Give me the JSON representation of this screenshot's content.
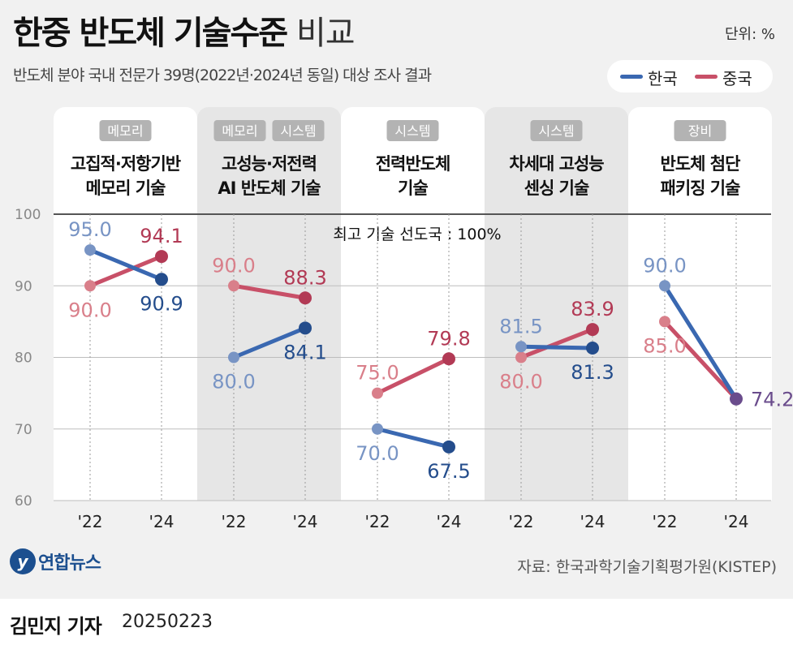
{
  "header": {
    "title_bold": "한중 반도체 기술수준",
    "title_light": "비교",
    "subtitle": "반도체 분야 국내 전문가 39명(2022년·2024년 동일) 대상 조사 결과",
    "unit": "단위: %"
  },
  "legend": [
    {
      "name": "한국",
      "color": "#3a68b1"
    },
    {
      "name": "중국",
      "color": "#c85068"
    }
  ],
  "colors": {
    "korea": "#3a68b1",
    "korea_light": "#7894c4",
    "korea_dark": "#244d8c",
    "china": "#c85068",
    "china_light": "#d97f8a",
    "china_dark": "#b23a55",
    "tie": "#6a4c8c",
    "panel_shaded": "#e6e6e6",
    "panel_white": "#ffffff"
  },
  "chart_data": {
    "type": "line",
    "ylim": [
      60,
      100
    ],
    "yticks": [
      "60",
      "70",
      "80",
      "90",
      "100"
    ],
    "reference_label": "최고 기술 선도국 : 100%",
    "grid": true,
    "groups": [
      {
        "tags": [
          "메모리"
        ],
        "title": [
          "고집적·저항기반",
          "메모리 기술"
        ],
        "x": [
          "'22",
          "'24"
        ],
        "korea": [
          95.0,
          90.9
        ],
        "china": [
          90.0,
          94.1
        ],
        "labels": {
          "korea": [
            "95.0",
            "90.9"
          ],
          "china": [
            "90.0",
            "94.1"
          ]
        }
      },
      {
        "tags": [
          "메모리",
          "시스템"
        ],
        "title": [
          "고성능·저전력",
          "AI 반도체 기술"
        ],
        "x": [
          "'22",
          "'24"
        ],
        "korea": [
          80.0,
          84.1
        ],
        "china": [
          90.0,
          88.3
        ],
        "labels": {
          "korea": [
            "80.0",
            "84.1"
          ],
          "china": [
            "90.0",
            "88.3"
          ]
        }
      },
      {
        "tags": [
          "시스템"
        ],
        "title": [
          "전력반도체",
          "기술"
        ],
        "x": [
          "'22",
          "'24"
        ],
        "korea": [
          70.0,
          67.5
        ],
        "china": [
          75.0,
          79.8
        ],
        "labels": {
          "korea": [
            "70.0",
            "67.5"
          ],
          "china": [
            "75.0",
            "79.8"
          ]
        }
      },
      {
        "tags": [
          "시스템"
        ],
        "title": [
          "차세대 고성능",
          "센싱 기술"
        ],
        "x": [
          "'22",
          "'24"
        ],
        "korea": [
          81.5,
          81.3
        ],
        "china": [
          80.0,
          83.9
        ],
        "labels": {
          "korea": [
            "81.5",
            "81.3"
          ],
          "china": [
            "80.0",
            "83.9"
          ]
        }
      },
      {
        "tags": [
          "장비"
        ],
        "title": [
          "반도체 첨단",
          "패키징 기술"
        ],
        "x": [
          "'22",
          "'24"
        ],
        "korea": [
          90.0,
          74.2
        ],
        "china": [
          85.0,
          74.2
        ],
        "labels": {
          "korea": [
            "90.0",
            ""
          ],
          "china": [
            "85.0",
            ""
          ]
        },
        "tie_label": "74.2"
      }
    ]
  },
  "footer": {
    "logo_mark": "y",
    "logo_text": "연합뉴스",
    "source": "자료: 한국과학기술기획평가원(KISTEP)",
    "reporter": "김민지 기자",
    "date": "20250223"
  }
}
